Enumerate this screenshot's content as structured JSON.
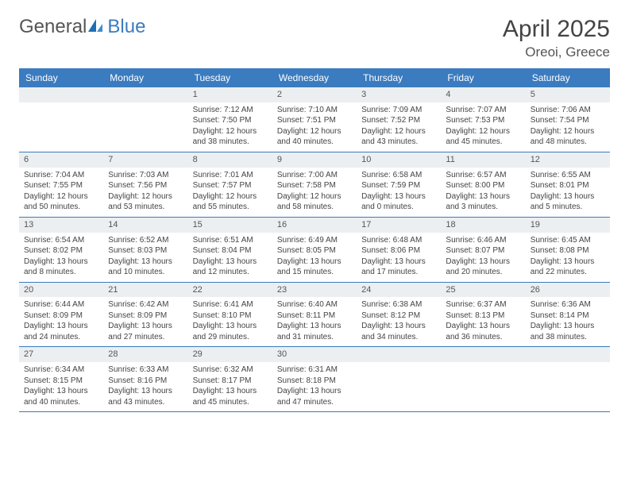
{
  "brand": {
    "part1": "General",
    "part2": "Blue"
  },
  "title": {
    "month_year": "April 2025",
    "location": "Oreoi, Greece"
  },
  "colors": {
    "header_bg": "#3b7bbf",
    "header_text": "#ffffff",
    "daynum_bg": "#eceff1",
    "rule": "#3b7bbf",
    "body_text": "#444444",
    "logo_gray": "#555555",
    "logo_blue": "#3b7bbf"
  },
  "weekdays": [
    "Sunday",
    "Monday",
    "Tuesday",
    "Wednesday",
    "Thursday",
    "Friday",
    "Saturday"
  ],
  "weeks": [
    [
      {
        "n": "",
        "sunrise": "",
        "sunset": "",
        "daylight": ""
      },
      {
        "n": "",
        "sunrise": "",
        "sunset": "",
        "daylight": ""
      },
      {
        "n": "1",
        "sunrise": "Sunrise: 7:12 AM",
        "sunset": "Sunset: 7:50 PM",
        "daylight": "Daylight: 12 hours and 38 minutes."
      },
      {
        "n": "2",
        "sunrise": "Sunrise: 7:10 AM",
        "sunset": "Sunset: 7:51 PM",
        "daylight": "Daylight: 12 hours and 40 minutes."
      },
      {
        "n": "3",
        "sunrise": "Sunrise: 7:09 AM",
        "sunset": "Sunset: 7:52 PM",
        "daylight": "Daylight: 12 hours and 43 minutes."
      },
      {
        "n": "4",
        "sunrise": "Sunrise: 7:07 AM",
        "sunset": "Sunset: 7:53 PM",
        "daylight": "Daylight: 12 hours and 45 minutes."
      },
      {
        "n": "5",
        "sunrise": "Sunrise: 7:06 AM",
        "sunset": "Sunset: 7:54 PM",
        "daylight": "Daylight: 12 hours and 48 minutes."
      }
    ],
    [
      {
        "n": "6",
        "sunrise": "Sunrise: 7:04 AM",
        "sunset": "Sunset: 7:55 PM",
        "daylight": "Daylight: 12 hours and 50 minutes."
      },
      {
        "n": "7",
        "sunrise": "Sunrise: 7:03 AM",
        "sunset": "Sunset: 7:56 PM",
        "daylight": "Daylight: 12 hours and 53 minutes."
      },
      {
        "n": "8",
        "sunrise": "Sunrise: 7:01 AM",
        "sunset": "Sunset: 7:57 PM",
        "daylight": "Daylight: 12 hours and 55 minutes."
      },
      {
        "n": "9",
        "sunrise": "Sunrise: 7:00 AM",
        "sunset": "Sunset: 7:58 PM",
        "daylight": "Daylight: 12 hours and 58 minutes."
      },
      {
        "n": "10",
        "sunrise": "Sunrise: 6:58 AM",
        "sunset": "Sunset: 7:59 PM",
        "daylight": "Daylight: 13 hours and 0 minutes."
      },
      {
        "n": "11",
        "sunrise": "Sunrise: 6:57 AM",
        "sunset": "Sunset: 8:00 PM",
        "daylight": "Daylight: 13 hours and 3 minutes."
      },
      {
        "n": "12",
        "sunrise": "Sunrise: 6:55 AM",
        "sunset": "Sunset: 8:01 PM",
        "daylight": "Daylight: 13 hours and 5 minutes."
      }
    ],
    [
      {
        "n": "13",
        "sunrise": "Sunrise: 6:54 AM",
        "sunset": "Sunset: 8:02 PM",
        "daylight": "Daylight: 13 hours and 8 minutes."
      },
      {
        "n": "14",
        "sunrise": "Sunrise: 6:52 AM",
        "sunset": "Sunset: 8:03 PM",
        "daylight": "Daylight: 13 hours and 10 minutes."
      },
      {
        "n": "15",
        "sunrise": "Sunrise: 6:51 AM",
        "sunset": "Sunset: 8:04 PM",
        "daylight": "Daylight: 13 hours and 12 minutes."
      },
      {
        "n": "16",
        "sunrise": "Sunrise: 6:49 AM",
        "sunset": "Sunset: 8:05 PM",
        "daylight": "Daylight: 13 hours and 15 minutes."
      },
      {
        "n": "17",
        "sunrise": "Sunrise: 6:48 AM",
        "sunset": "Sunset: 8:06 PM",
        "daylight": "Daylight: 13 hours and 17 minutes."
      },
      {
        "n": "18",
        "sunrise": "Sunrise: 6:46 AM",
        "sunset": "Sunset: 8:07 PM",
        "daylight": "Daylight: 13 hours and 20 minutes."
      },
      {
        "n": "19",
        "sunrise": "Sunrise: 6:45 AM",
        "sunset": "Sunset: 8:08 PM",
        "daylight": "Daylight: 13 hours and 22 minutes."
      }
    ],
    [
      {
        "n": "20",
        "sunrise": "Sunrise: 6:44 AM",
        "sunset": "Sunset: 8:09 PM",
        "daylight": "Daylight: 13 hours and 24 minutes."
      },
      {
        "n": "21",
        "sunrise": "Sunrise: 6:42 AM",
        "sunset": "Sunset: 8:09 PM",
        "daylight": "Daylight: 13 hours and 27 minutes."
      },
      {
        "n": "22",
        "sunrise": "Sunrise: 6:41 AM",
        "sunset": "Sunset: 8:10 PM",
        "daylight": "Daylight: 13 hours and 29 minutes."
      },
      {
        "n": "23",
        "sunrise": "Sunrise: 6:40 AM",
        "sunset": "Sunset: 8:11 PM",
        "daylight": "Daylight: 13 hours and 31 minutes."
      },
      {
        "n": "24",
        "sunrise": "Sunrise: 6:38 AM",
        "sunset": "Sunset: 8:12 PM",
        "daylight": "Daylight: 13 hours and 34 minutes."
      },
      {
        "n": "25",
        "sunrise": "Sunrise: 6:37 AM",
        "sunset": "Sunset: 8:13 PM",
        "daylight": "Daylight: 13 hours and 36 minutes."
      },
      {
        "n": "26",
        "sunrise": "Sunrise: 6:36 AM",
        "sunset": "Sunset: 8:14 PM",
        "daylight": "Daylight: 13 hours and 38 minutes."
      }
    ],
    [
      {
        "n": "27",
        "sunrise": "Sunrise: 6:34 AM",
        "sunset": "Sunset: 8:15 PM",
        "daylight": "Daylight: 13 hours and 40 minutes."
      },
      {
        "n": "28",
        "sunrise": "Sunrise: 6:33 AM",
        "sunset": "Sunset: 8:16 PM",
        "daylight": "Daylight: 13 hours and 43 minutes."
      },
      {
        "n": "29",
        "sunrise": "Sunrise: 6:32 AM",
        "sunset": "Sunset: 8:17 PM",
        "daylight": "Daylight: 13 hours and 45 minutes."
      },
      {
        "n": "30",
        "sunrise": "Sunrise: 6:31 AM",
        "sunset": "Sunset: 8:18 PM",
        "daylight": "Daylight: 13 hours and 47 minutes."
      },
      {
        "n": "",
        "sunrise": "",
        "sunset": "",
        "daylight": ""
      },
      {
        "n": "",
        "sunrise": "",
        "sunset": "",
        "daylight": ""
      },
      {
        "n": "",
        "sunrise": "",
        "sunset": "",
        "daylight": ""
      }
    ]
  ]
}
